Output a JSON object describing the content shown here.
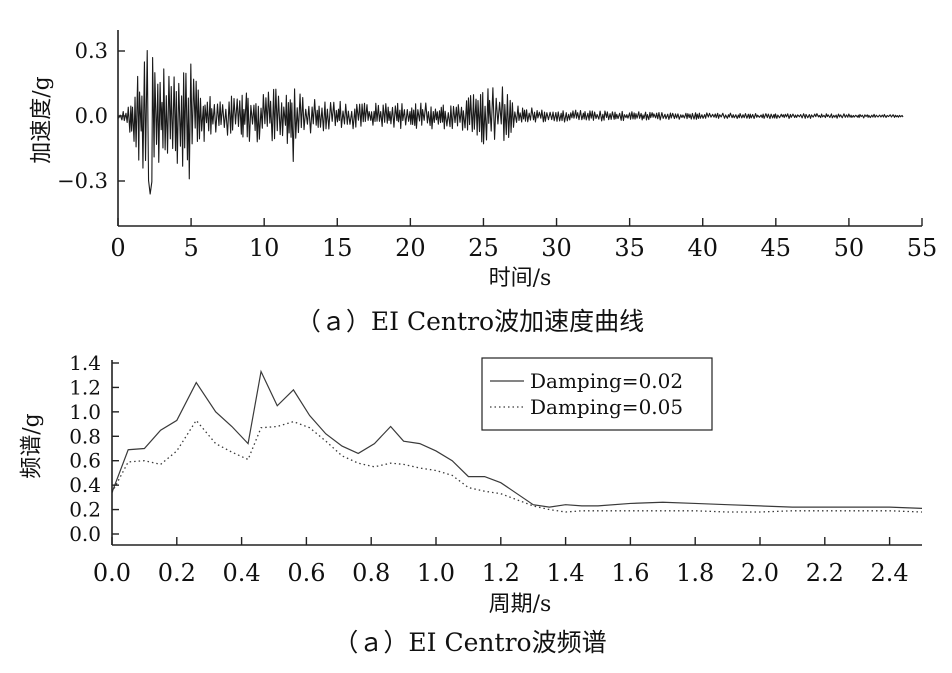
{
  "chart_data": [
    {
      "type": "line",
      "caption": "（ａ）EI Centro波加速度曲线",
      "xlabel": "时间/s",
      "ylabel": "加速度/g",
      "xlim": [
        0,
        55
      ],
      "ylim": [
        -0.5,
        0.4
      ],
      "x_ticks": [
        "0",
        "5",
        "10",
        "15",
        "20",
        "25",
        "30",
        "35",
        "40",
        "45",
        "50",
        "55"
      ],
      "y_ticks": [
        "0.3",
        "0.0",
        "-0.3"
      ],
      "y_tick_values": [
        0.3,
        0.0,
        -0.3
      ],
      "signal_duration": 53.7,
      "envelope": {
        "t": [
          0,
          0.6,
          1.0,
          1.6,
          2.2,
          2.8,
          3.5,
          4.2,
          4.8,
          5.5,
          6.5,
          8.0,
          9.0,
          10.0,
          11.0,
          12.0,
          13.0,
          15.0,
          17.0,
          19.0,
          21.0,
          23.0,
          24.0,
          25.0,
          26.5,
          27.0,
          28.0,
          30.0,
          33.0,
          36.0,
          40.0,
          45.0,
          50.0,
          53.7
        ],
        "amplitude": [
          0.01,
          0.03,
          0.12,
          0.27,
          0.32,
          0.25,
          0.2,
          0.24,
          0.25,
          0.16,
          0.08,
          0.1,
          0.13,
          0.12,
          0.13,
          0.14,
          0.08,
          0.07,
          0.06,
          0.06,
          0.06,
          0.06,
          0.1,
          0.13,
          0.14,
          0.06,
          0.04,
          0.03,
          0.025,
          0.02,
          0.015,
          0.012,
          0.01,
          0.006
        ]
      },
      "peaks": [
        {
          "t": 2.2,
          "a": -0.36
        },
        {
          "t": 2.4,
          "a": 0.27
        },
        {
          "t": 4.9,
          "a": -0.29
        },
        {
          "t": 5.0,
          "a": 0.24
        },
        {
          "t": 12.0,
          "a": -0.21
        },
        {
          "t": 25.7,
          "a": 0.13
        }
      ],
      "color": "#1a1a1a"
    },
    {
      "type": "line",
      "caption": "（ａ）EI Centro波频谱",
      "xlabel": "周期/s",
      "ylabel": "频谱/g",
      "xlim": [
        0,
        2.5
      ],
      "ylim": [
        0,
        1.4
      ],
      "x_ticks": [
        "0.0",
        "0.2",
        "0.4",
        "0.6",
        "0.8",
        "1.0",
        "1.2",
        "1.4",
        "1.6",
        "1.8",
        "2.0",
        "2.2",
        "2.4"
      ],
      "y_ticks": [
        "0.0",
        "0.2",
        "0.4",
        "0.6",
        "0.8",
        "1.0",
        "1.2",
        "1.4"
      ],
      "legend_position": "top-right",
      "x": [
        0.0,
        0.05,
        0.1,
        0.15,
        0.2,
        0.26,
        0.32,
        0.37,
        0.42,
        0.46,
        0.51,
        0.56,
        0.61,
        0.66,
        0.71,
        0.76,
        0.81,
        0.86,
        0.9,
        0.95,
        1.0,
        1.05,
        1.1,
        1.15,
        1.2,
        1.25,
        1.3,
        1.35,
        1.4,
        1.45,
        1.5,
        1.6,
        1.7,
        1.8,
        1.9,
        2.0,
        2.1,
        2.2,
        2.3,
        2.4,
        2.5
      ],
      "series": [
        {
          "name": "Damping=0.02",
          "dash": "solid",
          "color": "#3a3a3a",
          "values": [
            0.34,
            0.69,
            0.7,
            0.85,
            0.93,
            1.24,
            1.0,
            0.88,
            0.74,
            1.33,
            1.05,
            1.18,
            0.97,
            0.82,
            0.72,
            0.66,
            0.74,
            0.88,
            0.76,
            0.74,
            0.68,
            0.6,
            0.47,
            0.47,
            0.42,
            0.33,
            0.24,
            0.22,
            0.24,
            0.23,
            0.23,
            0.25,
            0.26,
            0.25,
            0.24,
            0.23,
            0.22,
            0.22,
            0.22,
            0.22,
            0.21
          ]
        },
        {
          "name": "Damping=0.05",
          "dash": "dotted",
          "color": "#3a3a3a",
          "values": [
            0.34,
            0.59,
            0.6,
            0.57,
            0.68,
            0.93,
            0.74,
            0.67,
            0.61,
            0.87,
            0.88,
            0.92,
            0.87,
            0.76,
            0.64,
            0.58,
            0.55,
            0.58,
            0.57,
            0.54,
            0.52,
            0.48,
            0.38,
            0.35,
            0.33,
            0.28,
            0.23,
            0.2,
            0.18,
            0.19,
            0.19,
            0.19,
            0.19,
            0.19,
            0.18,
            0.18,
            0.19,
            0.19,
            0.19,
            0.19,
            0.18
          ]
        }
      ]
    }
  ]
}
